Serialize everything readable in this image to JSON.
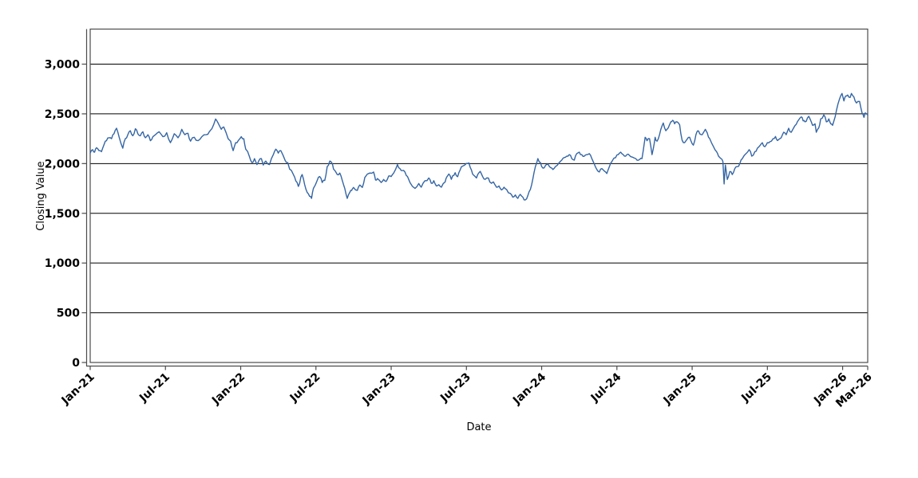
{
  "figure": {
    "background": "#ffffff",
    "title": ""
  },
  "chart_data": {
    "type": "line",
    "title": "",
    "xlabel": "Date",
    "ylabel": "Closing Value",
    "legend": "none",
    "grid": "horizontal",
    "line_color": "#3465a4",
    "grid_color": "#000000",
    "frame_color": "#4c4c4c",
    "tick_text_color": "#000000",
    "ylim": [
      0,
      3353
    ],
    "xlim_months": [
      0,
      62
    ],
    "y_ticks": [
      0,
      500,
      1000,
      1500,
      2000,
      2500,
      3000
    ],
    "y_tick_labels": [
      "0",
      "500",
      "1,000",
      "1,500",
      "2,000",
      "2,500",
      "3,000"
    ],
    "x_tick_months": [
      0,
      6,
      12,
      18,
      24,
      30,
      36,
      42,
      48,
      54,
      60,
      62
    ],
    "x_tick_labels": [
      "Jan-21",
      "Jul-21",
      "Jan-22",
      "Jul-22",
      "Jan-23",
      "Jul-23",
      "Jan-24",
      "Jul-24",
      "Jan-25",
      "Jul-25",
      "Jan-26",
      "Mar-26"
    ],
    "series": [
      {
        "name": "Closing Value",
        "points": [
          [
            0,
            2105
          ],
          [
            0.2,
            2140
          ],
          [
            0.35,
            2115
          ],
          [
            0.5,
            2160
          ],
          [
            0.7,
            2130
          ],
          [
            0.9,
            2120
          ],
          [
            1.1,
            2190
          ],
          [
            1.3,
            2230
          ],
          [
            1.5,
            2260
          ],
          [
            1.7,
            2250
          ],
          [
            1.9,
            2300
          ],
          [
            2.1,
            2355
          ],
          [
            2.3,
            2270
          ],
          [
            2.6,
            2155
          ],
          [
            2.8,
            2250
          ],
          [
            3,
            2290
          ],
          [
            3.2,
            2330
          ],
          [
            3.4,
            2280
          ],
          [
            3.6,
            2350
          ],
          [
            3.8,
            2300
          ],
          [
            4,
            2280
          ],
          [
            4.2,
            2320
          ],
          [
            4.4,
            2260
          ],
          [
            4.6,
            2290
          ],
          [
            4.8,
            2230
          ],
          [
            5,
            2270
          ],
          [
            5.2,
            2290
          ],
          [
            5.5,
            2320
          ],
          [
            5.8,
            2270
          ],
          [
            6.1,
            2310
          ],
          [
            6.4,
            2210
          ],
          [
            6.7,
            2300
          ],
          [
            7,
            2260
          ],
          [
            7.3,
            2345
          ],
          [
            7.55,
            2290
          ],
          [
            7.8,
            2305
          ],
          [
            8,
            2225
          ],
          [
            8.3,
            2265
          ],
          [
            8.6,
            2230
          ],
          [
            8.9,
            2270
          ],
          [
            9.25,
            2290
          ],
          [
            9.5,
            2320
          ],
          [
            9.7,
            2350
          ],
          [
            10,
            2448
          ],
          [
            10.2,
            2408
          ],
          [
            10.45,
            2345
          ],
          [
            10.65,
            2368
          ],
          [
            11,
            2250
          ],
          [
            11.2,
            2225
          ],
          [
            11.4,
            2130
          ],
          [
            11.6,
            2210
          ],
          [
            11.8,
            2230
          ],
          [
            12.05,
            2270
          ],
          [
            12.25,
            2250
          ],
          [
            12.4,
            2145
          ],
          [
            12.7,
            2070
          ],
          [
            12.9,
            2010
          ],
          [
            13.1,
            2050
          ],
          [
            13.3,
            1990
          ],
          [
            13.45,
            2030
          ],
          [
            13.65,
            2050
          ],
          [
            13.8,
            1985
          ],
          [
            14,
            2025
          ],
          [
            14.3,
            1990
          ],
          [
            14.6,
            2090
          ],
          [
            14.8,
            2145
          ],
          [
            15,
            2105
          ],
          [
            15.2,
            2130
          ],
          [
            15.55,
            2030
          ],
          [
            15.75,
            2010
          ],
          [
            15.9,
            1945
          ],
          [
            16.2,
            1890
          ],
          [
            16.4,
            1825
          ],
          [
            16.6,
            1770
          ],
          [
            16.8,
            1865
          ],
          [
            16.9,
            1890
          ],
          [
            17.1,
            1790
          ],
          [
            17.3,
            1710
          ],
          [
            17.5,
            1670
          ],
          [
            17.65,
            1650
          ],
          [
            17.8,
            1750
          ],
          [
            18.1,
            1830
          ],
          [
            18.3,
            1870
          ],
          [
            18.5,
            1810
          ],
          [
            18.7,
            1830
          ],
          [
            18.9,
            1970
          ],
          [
            19.1,
            2025
          ],
          [
            19.25,
            2010
          ],
          [
            19.4,
            1945
          ],
          [
            19.7,
            1890
          ],
          [
            19.9,
            1905
          ],
          [
            20.1,
            1830
          ],
          [
            20.3,
            1750
          ],
          [
            20.5,
            1650
          ],
          [
            20.7,
            1710
          ],
          [
            20.85,
            1730
          ],
          [
            21,
            1760
          ],
          [
            21.3,
            1730
          ],
          [
            21.5,
            1785
          ],
          [
            21.7,
            1760
          ],
          [
            21.9,
            1860
          ],
          [
            22.3,
            1905
          ],
          [
            22.6,
            1915
          ],
          [
            22.75,
            1835
          ],
          [
            22.9,
            1850
          ],
          [
            23.2,
            1810
          ],
          [
            23.4,
            1840
          ],
          [
            23.6,
            1820
          ],
          [
            23.8,
            1875
          ],
          [
            24,
            1870
          ],
          [
            24.2,
            1905
          ],
          [
            24.5,
            1990
          ],
          [
            24.7,
            1950
          ],
          [
            24.9,
            1930
          ],
          [
            25.1,
            1915
          ],
          [
            25.3,
            1870
          ],
          [
            25.5,
            1810
          ],
          [
            25.7,
            1770
          ],
          [
            25.9,
            1750
          ],
          [
            26.2,
            1800
          ],
          [
            26.4,
            1762
          ],
          [
            26.7,
            1828
          ],
          [
            27,
            1855
          ],
          [
            27.2,
            1802
          ],
          [
            27.4,
            1828
          ],
          [
            27.6,
            1775
          ],
          [
            27.8,
            1788
          ],
          [
            28,
            1762
          ],
          [
            28.3,
            1815
          ],
          [
            28.45,
            1868
          ],
          [
            28.6,
            1895
          ],
          [
            28.8,
            1842
          ],
          [
            29,
            1882
          ],
          [
            29.1,
            1908
          ],
          [
            29.3,
            1868
          ],
          [
            29.5,
            1935
          ],
          [
            29.7,
            1975
          ],
          [
            30,
            2002
          ],
          [
            30.2,
            2007
          ],
          [
            30.4,
            1935
          ],
          [
            30.6,
            1882
          ],
          [
            30.8,
            1855
          ],
          [
            31,
            1908
          ],
          [
            31.1,
            1922
          ],
          [
            31.3,
            1868
          ],
          [
            31.5,
            1842
          ],
          [
            31.75,
            1855
          ],
          [
            32,
            1802
          ],
          [
            32.15,
            1815
          ],
          [
            32.4,
            1762
          ],
          [
            32.6,
            1775
          ],
          [
            32.8,
            1735
          ],
          [
            33,
            1762
          ],
          [
            33.2,
            1740
          ],
          [
            33.5,
            1700
          ],
          [
            33.7,
            1662
          ],
          [
            33.9,
            1685
          ],
          [
            34.1,
            1650
          ],
          [
            34.3,
            1690
          ],
          [
            34.5,
            1662
          ],
          [
            34.7,
            1635
          ],
          [
            34.9,
            1680
          ],
          [
            35.1,
            1740
          ],
          [
            35.3,
            1850
          ],
          [
            35.5,
            1970
          ],
          [
            35.7,
            2050
          ],
          [
            35.9,
            2010
          ],
          [
            36.1,
            1955
          ],
          [
            36.3,
            1980
          ],
          [
            36.5,
            1995
          ],
          [
            36.7,
            1960
          ],
          [
            36.9,
            1940
          ],
          [
            37.1,
            1970
          ],
          [
            37.4,
            2010
          ],
          [
            37.6,
            2035
          ],
          [
            37.8,
            2060
          ],
          [
            38,
            2075
          ],
          [
            38.2,
            2090
          ],
          [
            38.4,
            2050
          ],
          [
            38.6,
            2035
          ],
          [
            38.8,
            2100
          ],
          [
            39,
            2115
          ],
          [
            39.2,
            2090
          ],
          [
            39.4,
            2075
          ],
          [
            39.6,
            2090
          ],
          [
            39.8,
            2100
          ],
          [
            40,
            2050
          ],
          [
            40.2,
            1995
          ],
          [
            40.4,
            1940
          ],
          [
            40.6,
            1915
          ],
          [
            40.8,
            1950
          ],
          [
            41,
            1925
          ],
          [
            41.2,
            1900
          ],
          [
            41.4,
            1970
          ],
          [
            41.6,
            2020
          ],
          [
            41.9,
            2060
          ],
          [
            42.1,
            2090
          ],
          [
            42.3,
            2115
          ],
          [
            42.5,
            2090
          ],
          [
            42.7,
            2075
          ],
          [
            42.9,
            2095
          ],
          [
            43.1,
            2070
          ],
          [
            43.4,
            2055
          ],
          [
            43.6,
            2035
          ],
          [
            43.8,
            2040
          ],
          [
            44,
            2050
          ],
          [
            44.1,
            2130
          ],
          [
            44.25,
            2265
          ],
          [
            44.4,
            2230
          ],
          [
            44.6,
            2250
          ],
          [
            44.8,
            2090
          ],
          [
            44.9,
            2150
          ],
          [
            45.05,
            2265
          ],
          [
            45.2,
            2225
          ],
          [
            45.4,
            2290
          ],
          [
            45.6,
            2380
          ],
          [
            45.7,
            2408
          ],
          [
            45.9,
            2330
          ],
          [
            46.1,
            2360
          ],
          [
            46.3,
            2420
          ],
          [
            46.45,
            2435
          ],
          [
            46.6,
            2400
          ],
          [
            46.8,
            2420
          ],
          [
            47,
            2390
          ],
          [
            47.2,
            2235
          ],
          [
            47.4,
            2210
          ],
          [
            47.6,
            2245
          ],
          [
            47.8,
            2265
          ],
          [
            48,
            2200
          ],
          [
            48.1,
            2185
          ],
          [
            48.3,
            2290
          ],
          [
            48.45,
            2330
          ],
          [
            48.6,
            2300
          ],
          [
            48.8,
            2290
          ],
          [
            49.05,
            2345
          ],
          [
            49.2,
            2310
          ],
          [
            49.4,
            2250
          ],
          [
            49.7,
            2170
          ],
          [
            49.95,
            2120
          ],
          [
            50.1,
            2075
          ],
          [
            50.3,
            2050
          ],
          [
            50.45,
            2020
          ],
          [
            50.55,
            1795
          ],
          [
            50.65,
            1985
          ],
          [
            50.8,
            1840
          ],
          [
            51,
            1920
          ],
          [
            51.2,
            1890
          ],
          [
            51.4,
            1950
          ],
          [
            51.6,
            1970
          ],
          [
            51.8,
            2000
          ],
          [
            52,
            2050
          ],
          [
            52.3,
            2100
          ],
          [
            52.55,
            2140
          ],
          [
            52.75,
            2075
          ],
          [
            53,
            2120
          ],
          [
            53.2,
            2155
          ],
          [
            53.4,
            2180
          ],
          [
            53.6,
            2210
          ],
          [
            53.8,
            2170
          ],
          [
            54,
            2210
          ],
          [
            54.2,
            2220
          ],
          [
            54.45,
            2250
          ],
          [
            54.65,
            2272
          ],
          [
            54.8,
            2232
          ],
          [
            55.1,
            2260
          ],
          [
            55.3,
            2315
          ],
          [
            55.5,
            2290
          ],
          [
            55.7,
            2355
          ],
          [
            55.9,
            2315
          ],
          [
            56.1,
            2360
          ],
          [
            56.3,
            2395
          ],
          [
            56.5,
            2440
          ],
          [
            56.7,
            2470
          ],
          [
            56.85,
            2430
          ],
          [
            57,
            2420
          ],
          [
            57.2,
            2460
          ],
          [
            57.3,
            2475
          ],
          [
            57.5,
            2420
          ],
          [
            57.6,
            2385
          ],
          [
            57.8,
            2400
          ],
          [
            57.9,
            2315
          ],
          [
            58.1,
            2360
          ],
          [
            58.25,
            2450
          ],
          [
            58.5,
            2490
          ],
          [
            58.7,
            2420
          ],
          [
            58.9,
            2450
          ],
          [
            59.05,
            2400
          ],
          [
            59.2,
            2385
          ],
          [
            59.4,
            2470
          ],
          [
            59.5,
            2530
          ],
          [
            59.75,
            2650
          ],
          [
            59.95,
            2705
          ],
          [
            60.1,
            2630
          ],
          [
            60.25,
            2680
          ],
          [
            60.4,
            2690
          ],
          [
            60.6,
            2665
          ],
          [
            60.7,
            2705
          ],
          [
            60.9,
            2670
          ],
          [
            61.1,
            2610
          ],
          [
            61.35,
            2625
          ],
          [
            61.55,
            2510
          ],
          [
            61.7,
            2465
          ],
          [
            61.8,
            2510
          ],
          [
            62,
            2488
          ]
        ]
      }
    ]
  }
}
